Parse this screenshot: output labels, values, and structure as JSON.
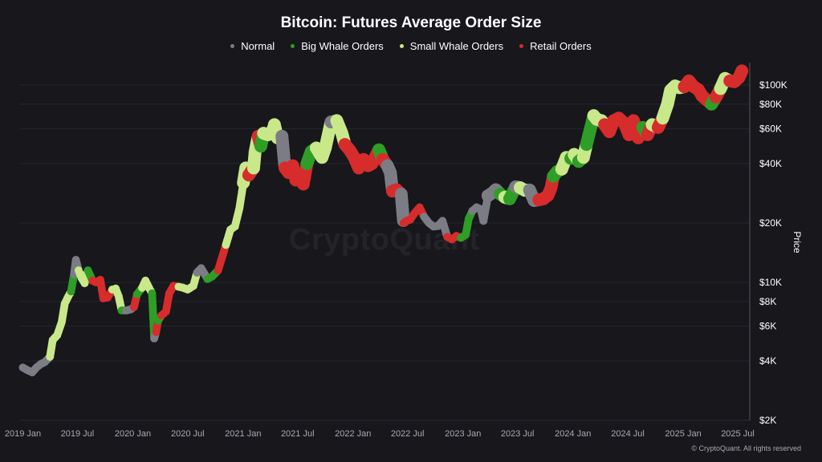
{
  "chart_data": {
    "type": "scatter",
    "title": "Bitcoin: Futures Average Order Size",
    "ylabel": "Price",
    "yscale": "log",
    "ylim": [
      2000,
      130000
    ],
    "xlim": [
      "2018-12-20",
      "2025-08-10"
    ],
    "grid": true,
    "legend_position": "top-center",
    "watermark": "CryptoQuant",
    "copyright": "© CryptoQuant. All rights reserved",
    "x_ticks": [
      "2019 Jan",
      "2019 Jul",
      "2020 Jan",
      "2020 Jul",
      "2021 Jan",
      "2021 Jul",
      "2022 Jan",
      "2022 Jul",
      "2023 Jan",
      "2023 Jul",
      "2024 Jan",
      "2024 Jul",
      "2025 Jan",
      "2025 Jul"
    ],
    "y_ticks": [
      {
        "value": 100000,
        "label": "$100K"
      },
      {
        "value": 80000,
        "label": "$80K"
      },
      {
        "value": 60000,
        "label": "$60K"
      },
      {
        "value": 40000,
        "label": "$40K"
      },
      {
        "value": 20000,
        "label": "$20K"
      },
      {
        "value": 10000,
        "label": "$10K"
      },
      {
        "value": 8000,
        "label": "$8K"
      },
      {
        "value": 6000,
        "label": "$6K"
      },
      {
        "value": 4000,
        "label": "$4K"
      },
      {
        "value": 2000,
        "label": "$2K"
      }
    ],
    "series": [
      {
        "name": "Normal",
        "color": "#7c7c85"
      },
      {
        "name": "Big Whale Orders",
        "color": "#2f9e26"
      },
      {
        "name": "Small Whale Orders",
        "color": "#c9e88a"
      },
      {
        "name": "Retail Orders",
        "color": "#d62c2c"
      }
    ],
    "points": [
      [
        "2019-01-01",
        3700,
        "Normal"
      ],
      [
        "2019-01-15",
        3600,
        "Normal"
      ],
      [
        "2019-02-01",
        3500,
        "Normal"
      ],
      [
        "2019-02-15",
        3700,
        "Normal"
      ],
      [
        "2019-03-01",
        3850,
        "Normal"
      ],
      [
        "2019-03-15",
        3950,
        "Normal"
      ],
      [
        "2019-04-01",
        4200,
        "Small Whale Orders"
      ],
      [
        "2019-04-10",
        5100,
        "Small Whale Orders"
      ],
      [
        "2019-04-25",
        5400,
        "Small Whale Orders"
      ],
      [
        "2019-05-10",
        6300,
        "Small Whale Orders"
      ],
      [
        "2019-05-20",
        7800,
        "Small Whale Orders"
      ],
      [
        "2019-06-01",
        8500,
        "Small Whale Orders"
      ],
      [
        "2019-06-10",
        9000,
        "Big Whale Orders"
      ],
      [
        "2019-06-20",
        11000,
        "Normal"
      ],
      [
        "2019-06-26",
        13000,
        "Normal"
      ],
      [
        "2019-07-05",
        11500,
        "Small Whale Orders"
      ],
      [
        "2019-07-15",
        10500,
        "Small Whale Orders"
      ],
      [
        "2019-07-25",
        9900,
        "Small Whale Orders"
      ],
      [
        "2019-08-05",
        11500,
        "Big Whale Orders"
      ],
      [
        "2019-08-20",
        10200,
        "Retail Orders"
      ],
      [
        "2019-09-01",
        10000,
        "Retail Orders"
      ],
      [
        "2019-09-15",
        10300,
        "Retail Orders"
      ],
      [
        "2019-09-25",
        8300,
        "Retail Orders"
      ],
      [
        "2019-10-10",
        8400,
        "Retail Orders"
      ],
      [
        "2019-10-25",
        9200,
        "Small Whale Orders"
      ],
      [
        "2019-11-05",
        9300,
        "Small Whale Orders"
      ],
      [
        "2019-11-15",
        8500,
        "Small Whale Orders"
      ],
      [
        "2019-11-25",
        7200,
        "Big Whale Orders"
      ],
      [
        "2019-12-10",
        7200,
        "Normal"
      ],
      [
        "2019-12-25",
        7300,
        "Normal"
      ],
      [
        "2020-01-05",
        7500,
        "Retail Orders"
      ],
      [
        "2020-01-15",
        8700,
        "Big Whale Orders"
      ],
      [
        "2020-02-01",
        9400,
        "Small Whale Orders"
      ],
      [
        "2020-02-12",
        10200,
        "Small Whale Orders"
      ],
      [
        "2020-02-25",
        9300,
        "Small Whale Orders"
      ],
      [
        "2020-03-05",
        8800,
        "Big Whale Orders"
      ],
      [
        "2020-03-12",
        5200,
        "Normal"
      ],
      [
        "2020-03-18",
        5600,
        "Retail Orders"
      ],
      [
        "2020-03-25",
        6400,
        "Big Whale Orders"
      ],
      [
        "2020-04-05",
        6800,
        "Retail Orders"
      ],
      [
        "2020-04-20",
        7100,
        "Retail Orders"
      ],
      [
        "2020-05-01",
        8800,
        "Retail Orders"
      ],
      [
        "2020-05-15",
        9600,
        "Retail Orders"
      ],
      [
        "2020-06-01",
        9500,
        "Small Whale Orders"
      ],
      [
        "2020-06-15",
        9400,
        "Small Whale Orders"
      ],
      [
        "2020-07-01",
        9200,
        "Small Whale Orders"
      ],
      [
        "2020-07-20",
        9600,
        "Small Whale Orders"
      ],
      [
        "2020-08-01",
        11200,
        "Normal"
      ],
      [
        "2020-08-15",
        11800,
        "Normal"
      ],
      [
        "2020-09-05",
        10400,
        "Big Whale Orders"
      ],
      [
        "2020-09-20",
        10700,
        "Big Whale Orders"
      ],
      [
        "2020-10-10",
        11500,
        "Retail Orders"
      ],
      [
        "2020-10-20",
        12900,
        "Retail Orders"
      ],
      [
        "2020-11-05",
        15500,
        "Small Whale Orders"
      ],
      [
        "2020-11-20",
        18500,
        "Small Whale Orders"
      ],
      [
        "2020-12-05",
        19200,
        "Small Whale Orders"
      ],
      [
        "2020-12-20",
        23800,
        "Small Whale Orders"
      ],
      [
        "2021-01-02",
        32000,
        "Small Whale Orders"
      ],
      [
        "2021-01-10",
        38000,
        "Small Whale Orders"
      ],
      [
        "2021-01-20",
        35000,
        "Retail Orders"
      ],
      [
        "2021-02-05",
        38000,
        "Small Whale Orders"
      ],
      [
        "2021-02-10",
        46000,
        "Small Whale Orders"
      ],
      [
        "2021-02-20",
        55000,
        "Retail Orders"
      ],
      [
        "2021-03-01",
        49000,
        "Big Whale Orders"
      ],
      [
        "2021-03-10",
        57000,
        "Small Whale Orders"
      ],
      [
        "2021-03-25",
        56000,
        "Small Whale Orders"
      ],
      [
        "2021-04-10",
        59000,
        "Small Whale Orders"
      ],
      [
        "2021-04-15",
        63000,
        "Small Whale Orders"
      ],
      [
        "2021-04-25",
        54000,
        "Small Whale Orders"
      ],
      [
        "2021-05-10",
        55000,
        "Normal"
      ],
      [
        "2021-05-20",
        38000,
        "Retail Orders"
      ],
      [
        "2021-06-01",
        36000,
        "Retail Orders"
      ],
      [
        "2021-06-15",
        39000,
        "Retail Orders"
      ],
      [
        "2021-06-25",
        33000,
        "Retail Orders"
      ],
      [
        "2021-07-05",
        34000,
        "Retail Orders"
      ],
      [
        "2021-07-20",
        31500,
        "Retail Orders"
      ],
      [
        "2021-08-01",
        40000,
        "Big Whale Orders"
      ],
      [
        "2021-08-15",
        46000,
        "Big Whale Orders"
      ],
      [
        "2021-09-01",
        48000,
        "Small Whale Orders"
      ],
      [
        "2021-09-20",
        43000,
        "Small Whale Orders"
      ],
      [
        "2021-10-01",
        48000,
        "Small Whale Orders"
      ],
      [
        "2021-10-15",
        60000,
        "Small Whale Orders"
      ],
      [
        "2021-10-20",
        65000,
        "Normal"
      ],
      [
        "2021-11-08",
        66000,
        "Small Whale Orders"
      ],
      [
        "2021-11-25",
        57000,
        "Small Whale Orders"
      ],
      [
        "2021-12-05",
        50000,
        "Retail Orders"
      ],
      [
        "2021-12-20",
        47000,
        "Retail Orders"
      ],
      [
        "2022-01-05",
        43000,
        "Retail Orders"
      ],
      [
        "2022-01-20",
        38000,
        "Retail Orders"
      ],
      [
        "2022-02-05",
        42000,
        "Retail Orders"
      ],
      [
        "2022-02-20",
        39000,
        "Retail Orders"
      ],
      [
        "2022-03-05",
        40000,
        "Retail Orders"
      ],
      [
        "2022-03-28",
        47000,
        "Big Whale Orders"
      ],
      [
        "2022-04-10",
        42000,
        "Retail Orders"
      ],
      [
        "2022-04-25",
        39000,
        "Normal"
      ],
      [
        "2022-05-05",
        36000,
        "Normal"
      ],
      [
        "2022-05-12",
        29000,
        "Retail Orders"
      ],
      [
        "2022-05-25",
        29500,
        "Retail Orders"
      ],
      [
        "2022-06-10",
        28000,
        "Normal"
      ],
      [
        "2022-06-18",
        20000,
        "Retail Orders"
      ],
      [
        "2022-06-28",
        20500,
        "Retail Orders"
      ],
      [
        "2022-07-10",
        20800,
        "Retail Orders"
      ],
      [
        "2022-07-25",
        22500,
        "Retail Orders"
      ],
      [
        "2022-08-10",
        24000,
        "Retail Orders"
      ],
      [
        "2022-08-25",
        21500,
        "Normal"
      ],
      [
        "2022-09-10",
        20000,
        "Normal"
      ],
      [
        "2022-09-25",
        19200,
        "Normal"
      ],
      [
        "2022-10-10",
        19300,
        "Normal"
      ],
      [
        "2022-10-25",
        20500,
        "Normal"
      ],
      [
        "2022-11-10",
        17000,
        "Retail Orders"
      ],
      [
        "2022-11-25",
        16500,
        "Retail Orders"
      ],
      [
        "2022-12-10",
        17200,
        "Retail Orders"
      ],
      [
        "2022-12-25",
        16800,
        "Big Whale Orders"
      ],
      [
        "2023-01-10",
        17400,
        "Big Whale Orders"
      ],
      [
        "2023-01-20",
        21000,
        "Big Whale Orders"
      ],
      [
        "2023-02-01",
        23000,
        "Normal"
      ],
      [
        "2023-02-15",
        24000,
        "Normal"
      ],
      [
        "2023-03-01",
        23500,
        "Normal"
      ],
      [
        "2023-03-10",
        20500,
        "Normal"
      ],
      [
        "2023-03-25",
        27500,
        "Normal"
      ],
      [
        "2023-04-10",
        28500,
        "Normal"
      ],
      [
        "2023-04-20",
        29500,
        "Normal"
      ],
      [
        "2023-05-05",
        28000,
        "Big Whale Orders"
      ],
      [
        "2023-05-20",
        27000,
        "Small Whale Orders"
      ],
      [
        "2023-06-05",
        26500,
        "Big Whale Orders"
      ],
      [
        "2023-06-25",
        30500,
        "Normal"
      ],
      [
        "2023-07-10",
        30200,
        "Small Whale Orders"
      ],
      [
        "2023-07-25",
        29300,
        "Small Whale Orders"
      ],
      [
        "2023-08-10",
        29400,
        "Normal"
      ],
      [
        "2023-08-25",
        26000,
        "Normal"
      ],
      [
        "2023-09-10",
        26200,
        "Retail Orders"
      ],
      [
        "2023-09-25",
        26500,
        "Retail Orders"
      ],
      [
        "2023-10-10",
        27600,
        "Retail Orders"
      ],
      [
        "2023-10-20",
        30000,
        "Retail Orders"
      ],
      [
        "2023-10-28",
        34500,
        "Big Whale Orders"
      ],
      [
        "2023-11-10",
        36500,
        "Big Whale Orders"
      ],
      [
        "2023-11-25",
        37500,
        "Small Whale Orders"
      ],
      [
        "2023-12-10",
        43000,
        "Small Whale Orders"
      ],
      [
        "2023-12-25",
        42500,
        "Big Whale Orders"
      ],
      [
        "2024-01-05",
        44500,
        "Small Whale Orders"
      ],
      [
        "2024-01-20",
        41000,
        "Big Whale Orders"
      ],
      [
        "2024-02-05",
        43000,
        "Small Whale Orders"
      ],
      [
        "2024-02-15",
        50000,
        "Big Whale Orders"
      ],
      [
        "2024-02-28",
        60000,
        "Big Whale Orders"
      ],
      [
        "2024-03-10",
        70000,
        "Small Whale Orders"
      ],
      [
        "2024-03-20",
        67000,
        "Small Whale Orders"
      ],
      [
        "2024-04-05",
        66000,
        "Small Whale Orders"
      ],
      [
        "2024-04-15",
        63000,
        "Retail Orders"
      ],
      [
        "2024-05-01",
        58000,
        "Retail Orders"
      ],
      [
        "2024-05-15",
        66000,
        "Retail Orders"
      ],
      [
        "2024-06-01",
        68000,
        "Retail Orders"
      ],
      [
        "2024-06-20",
        64000,
        "Retail Orders"
      ],
      [
        "2024-07-05",
        56000,
        "Retail Orders"
      ],
      [
        "2024-07-20",
        66000,
        "Retail Orders"
      ],
      [
        "2024-08-05",
        54000,
        "Retail Orders"
      ],
      [
        "2024-08-20",
        61000,
        "Big Whale Orders"
      ],
      [
        "2024-09-05",
        56000,
        "Retail Orders"
      ],
      [
        "2024-09-20",
        63000,
        "Small Whale Orders"
      ],
      [
        "2024-10-10",
        61000,
        "Retail Orders"
      ],
      [
        "2024-10-25",
        68000,
        "Small Whale Orders"
      ],
      [
        "2024-11-10",
        80000,
        "Small Whale Orders"
      ],
      [
        "2024-11-20",
        94000,
        "Small Whale Orders"
      ],
      [
        "2024-12-05",
        99000,
        "Small Whale Orders"
      ],
      [
        "2024-12-20",
        97000,
        "Small Whale Orders"
      ],
      [
        "2025-01-05",
        98000,
        "Retail Orders"
      ],
      [
        "2025-01-20",
        105000,
        "Retail Orders"
      ],
      [
        "2025-02-05",
        98000,
        "Retail Orders"
      ],
      [
        "2025-02-20",
        95000,
        "Retail Orders"
      ],
      [
        "2025-03-05",
        88000,
        "Retail Orders"
      ],
      [
        "2025-03-20",
        84000,
        "Retail Orders"
      ],
      [
        "2025-04-05",
        80000,
        "Big Whale Orders"
      ],
      [
        "2025-04-20",
        87000,
        "Retail Orders"
      ],
      [
        "2025-05-05",
        96000,
        "Small Whale Orders"
      ],
      [
        "2025-05-20",
        108000,
        "Small Whale Orders"
      ],
      [
        "2025-06-05",
        105000,
        "Retail Orders"
      ],
      [
        "2025-06-20",
        104000,
        "Retail Orders"
      ],
      [
        "2025-07-05",
        109000,
        "Retail Orders"
      ],
      [
        "2025-07-15",
        118000,
        "Retail Orders"
      ]
    ]
  }
}
